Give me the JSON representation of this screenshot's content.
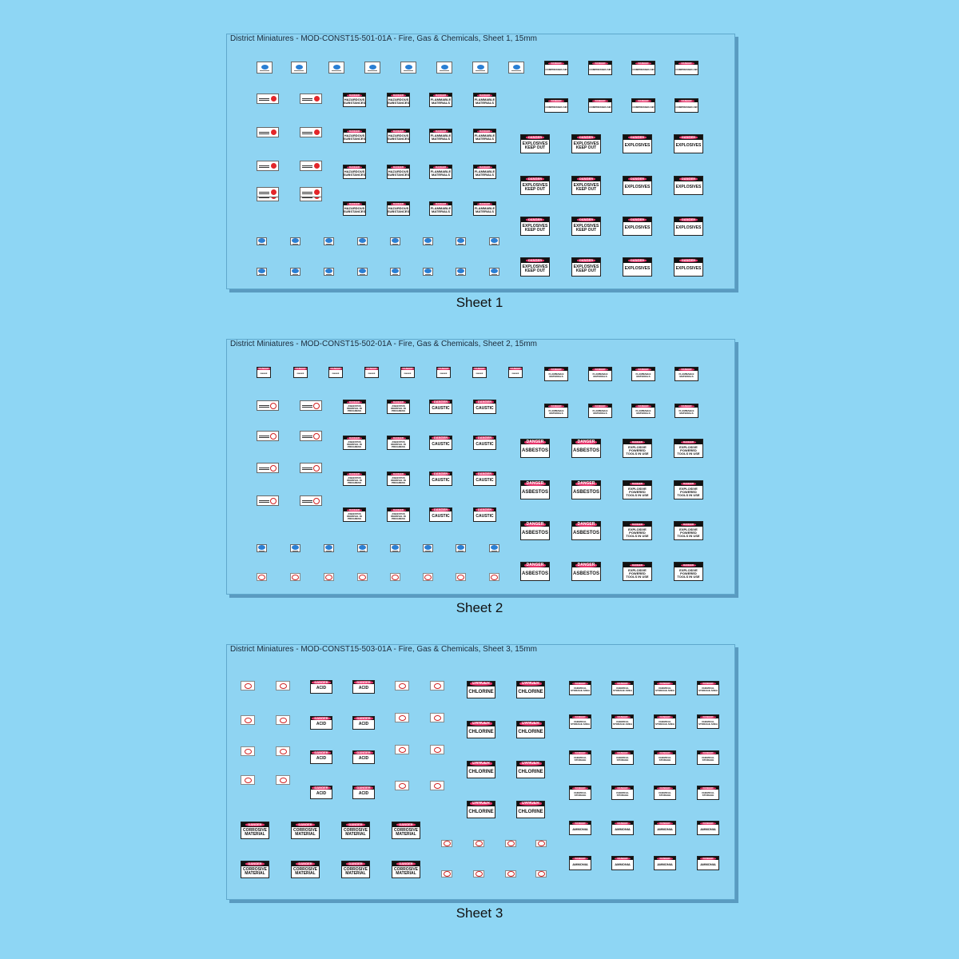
{
  "sheets": [
    {
      "title": "District Miniatures - MOD-CONST15-501-01A - Fire, Gas & Chemicals, Sheet 1, 15mm",
      "caption": "Sheet 1"
    },
    {
      "title": "District Miniatures - MOD-CONST15-502-01A - Fire, Gas & Chemicals, Sheet 2, 15mm",
      "caption": "Sheet 2"
    },
    {
      "title": "District Miniatures - MOD-CONST15-503-01A - Fire, Gas & Chemicals, Sheet 3, 15mm",
      "caption": "Sheet 3"
    }
  ],
  "signs": {
    "danger": "DANGER",
    "hazardous_substances": "HAZARDOUS SUBSTANCES",
    "flammable_materials": "FLAMMABLE MATERIALS",
    "explosives_keep_out": "EXPLOSIVES KEEP OUT",
    "explosives": "EXPLOSIVES",
    "compressed_air": "COMPRESSED AIR",
    "asbestos_removal": "ASBESTOS REMOVAL IN PROGRESS",
    "caustic": "CAUSTIC",
    "asbestos": "ASBESTOS",
    "explosive_powered_tools": "EXPLOSIVE POWERED TOOLS IN USE",
    "flammable_storage": "FLAMMABLE MATERIALS",
    "acid": "ACID",
    "chlorine": "CHLORINE",
    "chemical_storage_area": "CHEMICAL STORAGE AREA",
    "chemical_storage": "CHEMICAL STORAGE",
    "ammonia": "AMMONIA",
    "corrosive_material": "CORROSIVE MATERIAL",
    "no_naked_flames": "NO NAKED FLAMES"
  },
  "colors": {
    "background": "#8ed6f4",
    "danger_header": "#111111",
    "danger_oval": "#e8326a",
    "mandatory_blue": "#2a7fd4",
    "fire_red": "#e3262a"
  }
}
